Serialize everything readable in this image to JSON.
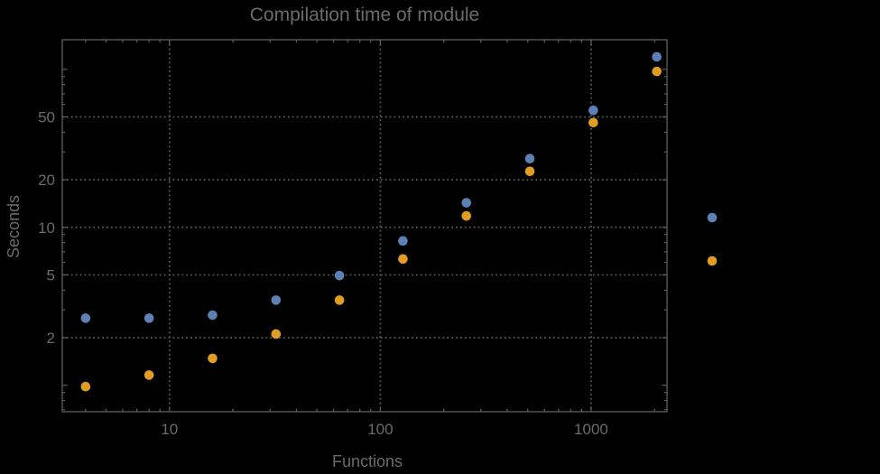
{
  "page": {
    "background": "#000000"
  },
  "chart_data": {
    "type": "scatter",
    "title": "Compilation time of module",
    "xlabel": "Functions",
    "ylabel": "Seconds",
    "xscale": "log",
    "yscale": "log",
    "xlim": [
      3.1,
      2290
    ],
    "ylim": [
      0.68,
      154
    ],
    "grid": "dotted",
    "x": [
      4,
      8,
      16,
      32,
      64,
      128,
      256,
      512,
      1024,
      2048
    ],
    "series": [
      {
        "name": "series-1-blue",
        "color": "#5e81b5",
        "values": [
          2.66,
          2.66,
          2.78,
          3.46,
          4.95,
          8.2,
          14.3,
          27.2,
          55,
          120
        ]
      },
      {
        "name": "series-2-orange",
        "color": "#e19c24",
        "values": [
          0.98,
          1.16,
          1.48,
          2.11,
          3.46,
          6.3,
          11.8,
          22.6,
          46,
          97
        ]
      }
    ],
    "x_ticks": [
      {
        "value": 10,
        "label": "10"
      },
      {
        "value": 100,
        "label": "100"
      },
      {
        "value": 1000,
        "label": "1000"
      }
    ],
    "y_ticks": [
      {
        "value": 2,
        "label": "2"
      },
      {
        "value": 5,
        "label": "5"
      },
      {
        "value": 10,
        "label": "10"
      },
      {
        "value": 20,
        "label": "20"
      },
      {
        "value": 50,
        "label": "50"
      }
    ],
    "legend_position": "right",
    "legend_markers": [
      {
        "name": "series-1-blue",
        "color": "#5e81b5"
      },
      {
        "name": "series-2-orange",
        "color": "#e19c24"
      }
    ],
    "marker_diameter": 10.6,
    "colors": {
      "frame": "#5e5e5e",
      "grid": "#5a5a5a",
      "text": "#6b6b6b"
    }
  }
}
